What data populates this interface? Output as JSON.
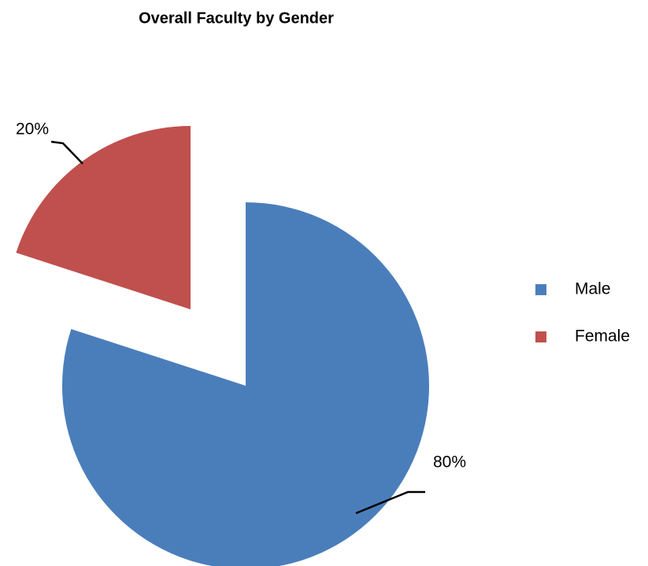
{
  "chart_data": {
    "type": "pie",
    "title": "Overall Faculty by Gender",
    "categories": [
      "Male",
      "Female"
    ],
    "values": [
      80,
      20
    ],
    "value_labels": [
      "80%",
      "20%"
    ],
    "colors": [
      "#4a7ebb",
      "#c0504d"
    ],
    "legend": "right"
  }
}
